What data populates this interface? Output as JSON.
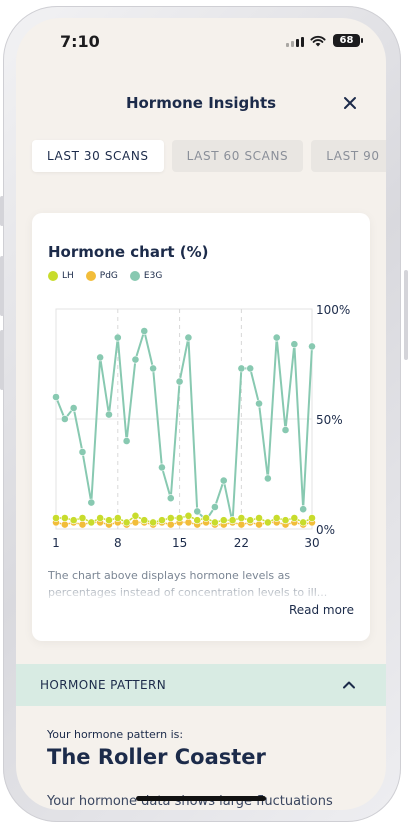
{
  "status_bar": {
    "time": "7:10",
    "battery": "68"
  },
  "header": {
    "title": "Hormone Insights"
  },
  "tabs": [
    {
      "label": "LAST 30 SCANS",
      "active": true
    },
    {
      "label": "LAST 60 SCANS",
      "active": false
    },
    {
      "label": "LAST 90",
      "active": false
    }
  ],
  "card": {
    "title": "Hormone chart (%)",
    "description": "The chart above displays hormone levels as percentages instead of concentration levels to ill...",
    "read_more": "Read more"
  },
  "chart_data": {
    "type": "line",
    "x": [
      1,
      2,
      3,
      4,
      5,
      6,
      7,
      8,
      9,
      10,
      11,
      12,
      13,
      14,
      15,
      16,
      17,
      18,
      19,
      20,
      21,
      22,
      23,
      24,
      25,
      26,
      27,
      28,
      29,
      30
    ],
    "x_ticks": [
      "1",
      "8",
      "15",
      "22",
      "30"
    ],
    "y_ticks": [
      "0%",
      "50%",
      "100%"
    ],
    "ylim": [
      0,
      100
    ],
    "legend_position": "top-left",
    "series": [
      {
        "name": "LH",
        "color": "#c8dc2c",
        "values": [
          5,
          5,
          4,
          5,
          3,
          5,
          4,
          5,
          3,
          6,
          4,
          3,
          4,
          5,
          5,
          6,
          4,
          5,
          3,
          4,
          4,
          5,
          4,
          5,
          3,
          5,
          4,
          5,
          3,
          5
        ]
      },
      {
        "name": "PdG",
        "color": "#f2bd3a",
        "values": [
          3,
          2,
          3,
          2,
          3,
          3,
          2,
          3,
          2,
          3,
          3,
          2,
          3,
          2,
          3,
          3,
          2,
          3,
          2,
          2,
          3,
          2,
          3,
          2,
          3,
          3,
          2,
          3,
          2,
          3
        ]
      },
      {
        "name": "E3G",
        "color": "#88c9b1",
        "values": [
          60,
          50,
          55,
          35,
          12,
          78,
          52,
          87,
          40,
          77,
          90,
          73,
          28,
          14,
          67,
          87,
          8,
          4,
          10,
          22,
          3,
          73,
          73,
          57,
          23,
          87,
          45,
          84,
          9,
          83
        ]
      }
    ]
  },
  "pattern": {
    "section_label": "HORMONE PATTERN",
    "intro": "Your hormone pattern is:",
    "name": "The Roller Coaster",
    "description": "Your hormone data shows large fluctuations"
  },
  "icons": {
    "close": "close-icon",
    "chevron": "chevron-up-icon",
    "signal": "signal-icon",
    "wifi": "wifi-icon",
    "battery": "battery-icon"
  }
}
